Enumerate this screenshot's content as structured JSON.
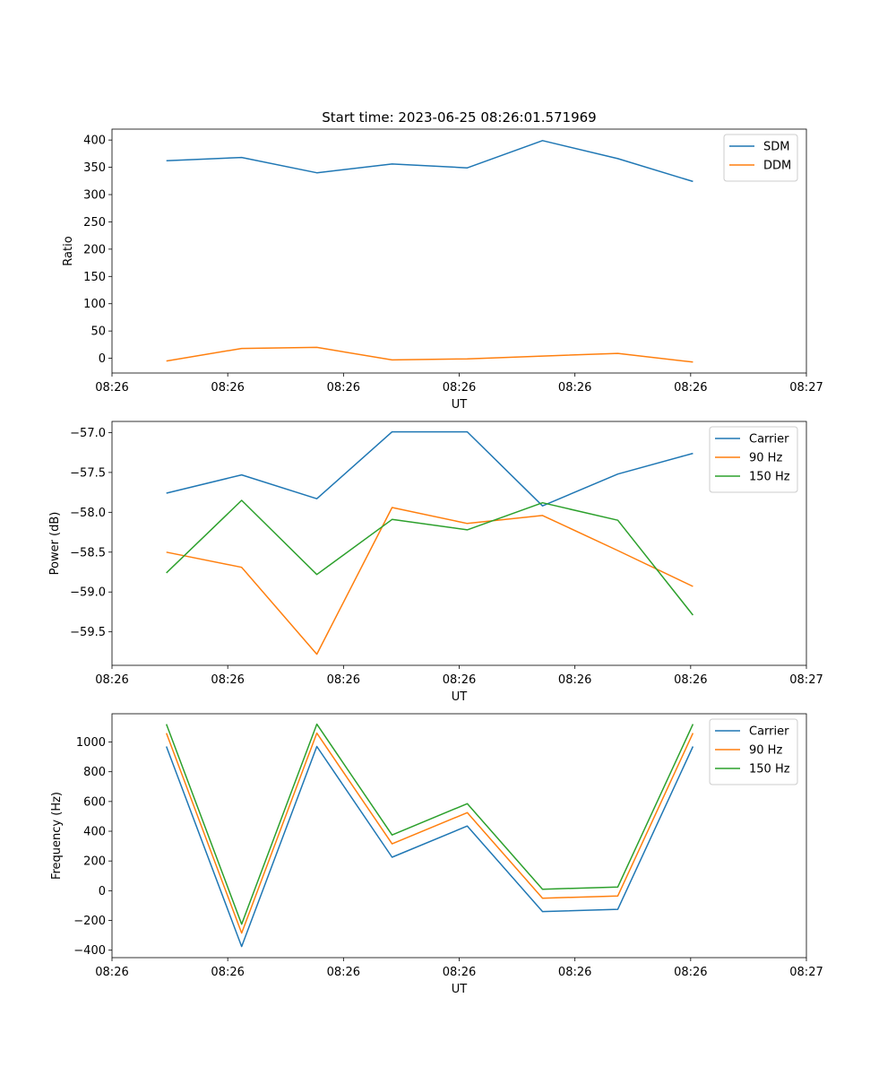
{
  "chart_data": [
    {
      "type": "line",
      "title": "Start time: 2023-06-25 08:26:01.571969",
      "xlabel": "UT",
      "ylabel": "Ratio",
      "ylim": [
        -27,
        420
      ],
      "xlim": [
        0,
        6.0
      ],
      "x": [
        0.47,
        1.12,
        1.77,
        2.42,
        3.07,
        3.72,
        4.37,
        5.02
      ],
      "x_tick_positions": [
        0,
        1,
        2,
        3,
        4,
        5,
        6
      ],
      "x_tick_labels": [
        "08:26",
        "08:26",
        "08:26",
        "08:26",
        "08:26",
        "08:26",
        "08:27"
      ],
      "y_ticks": [
        0,
        50,
        100,
        150,
        200,
        250,
        300,
        350,
        400
      ],
      "y_tick_labels": [
        "0",
        "50",
        "100",
        "150",
        "200",
        "250",
        "300",
        "350",
        "400"
      ],
      "legend": "top-right",
      "grid": false,
      "series": [
        {
          "name": "SDM",
          "color": "#1f77b4",
          "values": [
            362,
            368,
            340,
            356,
            349,
            399,
            366,
            324
          ]
        },
        {
          "name": "DDM",
          "color": "#ff7f0e",
          "values": [
            -5,
            18,
            20,
            -3,
            -1,
            4,
            9,
            -7
          ]
        }
      ]
    },
    {
      "type": "line",
      "title": "",
      "xlabel": "UT",
      "ylabel": "Power (dB)",
      "ylim": [
        -59.92,
        -56.86
      ],
      "xlim": [
        0,
        6.0
      ],
      "x": [
        0.47,
        1.12,
        1.77,
        2.42,
        3.07,
        3.72,
        4.37,
        5.02
      ],
      "x_tick_positions": [
        0,
        1,
        2,
        3,
        4,
        5,
        6
      ],
      "x_tick_labels": [
        "08:26",
        "08:26",
        "08:26",
        "08:26",
        "08:26",
        "08:26",
        "08:27"
      ],
      "y_ticks": [
        -59.5,
        -59.0,
        -58.5,
        -58.0,
        -57.5,
        -57.0
      ],
      "y_tick_labels": [
        "−59.5",
        "−59.0",
        "−58.5",
        "−58.0",
        "−57.5",
        "−57.0"
      ],
      "legend": "top-right",
      "grid": false,
      "series": [
        {
          "name": "Carrier",
          "color": "#1f77b4",
          "values": [
            -57.76,
            -57.53,
            -57.83,
            -56.99,
            -56.99,
            -57.92,
            -57.52,
            -57.26
          ]
        },
        {
          "name": "90 Hz",
          "color": "#ff7f0e",
          "values": [
            -58.5,
            -58.69,
            -59.78,
            -57.94,
            -58.14,
            -58.04,
            -58.48,
            -58.93
          ]
        },
        {
          "name": "150 Hz",
          "color": "#2ca02c",
          "values": [
            -58.76,
            -57.85,
            -58.78,
            -58.09,
            -58.22,
            -57.88,
            -58.1,
            -59.29
          ]
        }
      ]
    },
    {
      "type": "line",
      "title": "",
      "xlabel": "UT",
      "ylabel": "Frequency (Hz)",
      "ylim": [
        -450,
        1190
      ],
      "xlim": [
        0,
        6.0
      ],
      "x": [
        0.47,
        1.12,
        1.77,
        2.42,
        3.07,
        3.72,
        4.37,
        5.02
      ],
      "x_tick_positions": [
        0,
        1,
        2,
        3,
        4,
        5,
        6
      ],
      "x_tick_labels": [
        "08:26",
        "08:26",
        "08:26",
        "08:26",
        "08:26",
        "08:26",
        "08:27"
      ],
      "y_ticks": [
        -400,
        -200,
        0,
        200,
        400,
        600,
        800,
        1000
      ],
      "y_tick_labels": [
        "−400",
        "−200",
        "0",
        "200",
        "400",
        "600",
        "800",
        "1000"
      ],
      "legend": "top-right",
      "grid": false,
      "series": [
        {
          "name": "Carrier",
          "color": "#1f77b4",
          "values": [
            970,
            -375,
            970,
            225,
            435,
            -140,
            -125,
            970
          ]
        },
        {
          "name": "90 Hz",
          "color": "#ff7f0e",
          "values": [
            1060,
            -285,
            1060,
            315,
            525,
            -50,
            -35,
            1060
          ]
        },
        {
          "name": "150 Hz",
          "color": "#2ca02c",
          "values": [
            1120,
            -225,
            1120,
            375,
            585,
            10,
            25,
            1120
          ]
        }
      ]
    }
  ]
}
